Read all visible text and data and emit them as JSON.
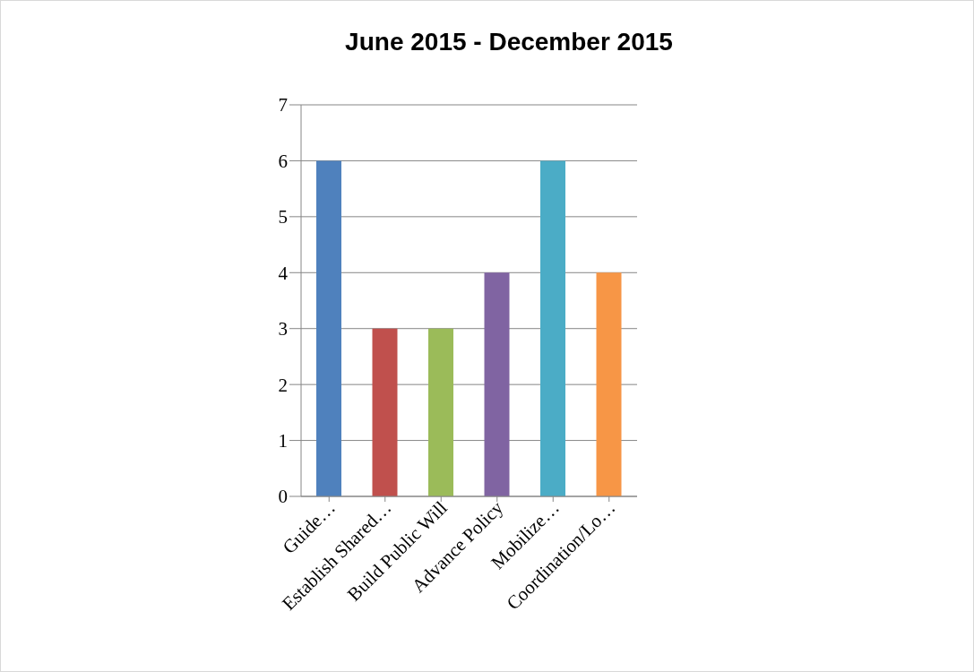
{
  "chart_data": {
    "type": "bar",
    "title": "June 2015 - December 2015",
    "categories": [
      "Guide…",
      "Establish Shared…",
      "Build Public Will",
      "Advance Policy",
      "Mobilize…",
      "Coordination/Lo…"
    ],
    "values": [
      6,
      3,
      3,
      4,
      6,
      4
    ],
    "colors": [
      "#4f81bd",
      "#c0504d",
      "#9bbb59",
      "#8064a2",
      "#4bacc6",
      "#f79646"
    ],
    "ylim": [
      0,
      7
    ],
    "yticks": [
      0,
      1,
      2,
      3,
      4,
      5,
      6,
      7
    ],
    "grid": "y"
  }
}
